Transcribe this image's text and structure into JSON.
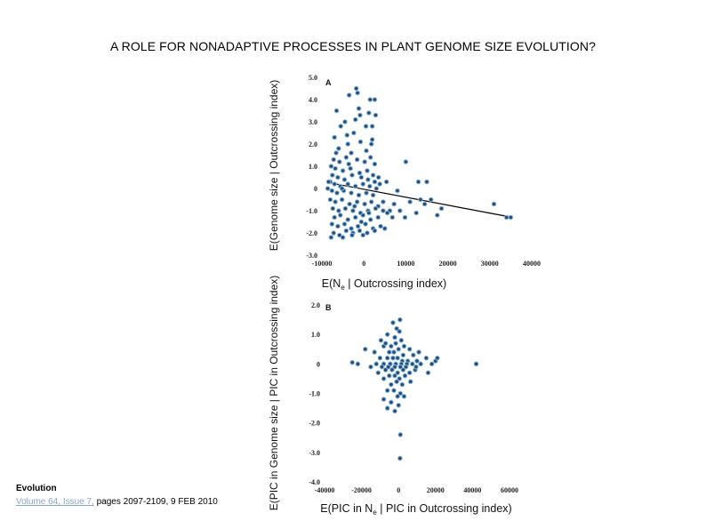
{
  "slide": {
    "title": "A ROLE FOR NONADAPTIVE PROCESSES IN PLANT GENOME SIZE EVOLUTION?",
    "journal": "Evolution",
    "issue_link": "Volume 64, Issue 7,",
    "pages_date": " pages 2097-2109, 9 FEB 2010"
  },
  "colors": {
    "point_fill": "#1f4e79",
    "point_halo": "#8fb8e0",
    "fit_line": "#000000"
  },
  "chart_data": [
    {
      "type": "scatter",
      "panel": "A",
      "ylabel": "E(Genome size | Outcrossing index)",
      "xlabel_main": "E(N",
      "xlabel_sub": "e",
      "xlabel_tail": " | Outcrossing index)",
      "xlim": [
        -10000,
        40000
      ],
      "ylim": [
        -3.0,
        5.0
      ],
      "x_ticks": [
        -10000,
        0,
        10000,
        20000,
        30000,
        40000
      ],
      "x_tick_labels": [
        "-10000",
        "0",
        "10000",
        "20000",
        "30000",
        "40000"
      ],
      "y_ticks": [
        -3,
        -2,
        -1,
        0,
        1,
        2,
        3,
        4,
        5
      ],
      "y_tick_labels": [
        "-3.0",
        "-2.0",
        "-1.0",
        "0",
        "1.0",
        "2.0",
        "3.0",
        "4.0",
        "5.0"
      ],
      "fit_line": {
        "x": [
          -8000,
          34000
        ],
        "y": [
          0.25,
          -1.25
        ]
      },
      "points": [
        [
          -1800,
          4.5
        ],
        [
          -1500,
          4.3
        ],
        [
          -3500,
          4.2
        ],
        [
          1500,
          4.0
        ],
        [
          2600,
          4.0
        ],
        [
          -6500,
          3.5
        ],
        [
          -1200,
          3.6
        ],
        [
          1200,
          3.4
        ],
        [
          -4500,
          3.0
        ],
        [
          -2000,
          3.1
        ],
        [
          -900,
          3.3
        ],
        [
          2800,
          3.3
        ],
        [
          -5500,
          2.8
        ],
        [
          -2400,
          2.5
        ],
        [
          500,
          2.8
        ],
        [
          2000,
          2.8
        ],
        [
          -7000,
          2.3
        ],
        [
          -3800,
          2.0
        ],
        [
          -800,
          2.1
        ],
        [
          1800,
          2.0
        ],
        [
          -6000,
          1.8
        ],
        [
          -3000,
          1.6
        ],
        [
          600,
          1.7
        ],
        [
          -4200,
          1.4
        ],
        [
          -7200,
          1.3
        ],
        [
          -5800,
          1.2
        ],
        [
          -3600,
          1.1
        ],
        [
          -1600,
          1.3
        ],
        [
          200,
          1.2
        ],
        [
          1600,
          1.4
        ],
        [
          2600,
          1.1
        ],
        [
          -6800,
          0.9
        ],
        [
          -5000,
          0.8
        ],
        [
          -3200,
          0.9
        ],
        [
          -1000,
          0.7
        ],
        [
          800,
          0.8
        ],
        [
          2200,
          0.6
        ],
        [
          3500,
          0.5
        ],
        [
          -7500,
          0.6
        ],
        [
          -6200,
          0.5
        ],
        [
          -4600,
          0.4
        ],
        [
          -2800,
          0.6
        ],
        [
          -600,
          0.5
        ],
        [
          1000,
          0.4
        ],
        [
          2600,
          0.3
        ],
        [
          -8000,
          0.3
        ],
        [
          -7000,
          0.2
        ],
        [
          -5600,
          0.1
        ],
        [
          -3800,
          0.2
        ],
        [
          -2000,
          0.1
        ],
        [
          -200,
          0.2
        ],
        [
          1400,
          0.1
        ],
        [
          3000,
          0.0
        ],
        [
          -7600,
          -0.1
        ],
        [
          -6400,
          -0.2
        ],
        [
          -4800,
          -0.1
        ],
        [
          -3000,
          -0.2
        ],
        [
          -1200,
          -0.3
        ],
        [
          600,
          -0.2
        ],
        [
          2200,
          -0.3
        ],
        [
          -8000,
          -0.5
        ],
        [
          -6800,
          -0.6
        ],
        [
          -5200,
          -0.5
        ],
        [
          -3400,
          -0.7
        ],
        [
          -1600,
          -0.6
        ],
        [
          200,
          -0.7
        ],
        [
          1800,
          -0.6
        ],
        [
          3400,
          -0.8
        ],
        [
          -7400,
          -0.9
        ],
        [
          -6000,
          -1.0
        ],
        [
          -4400,
          -0.9
        ],
        [
          -2600,
          -1.0
        ],
        [
          -800,
          -1.1
        ],
        [
          1000,
          -1.0
        ],
        [
          2800,
          -0.9
        ],
        [
          4600,
          -1.0
        ],
        [
          6200,
          -1.0
        ],
        [
          -7000,
          -1.3
        ],
        [
          -5600,
          -1.2
        ],
        [
          -3800,
          -1.4
        ],
        [
          -2000,
          -1.3
        ],
        [
          -200,
          -1.2
        ],
        [
          1600,
          -1.4
        ],
        [
          3400,
          -1.3
        ],
        [
          -7600,
          -1.6
        ],
        [
          -6200,
          -1.7
        ],
        [
          -4600,
          -1.6
        ],
        [
          -3000,
          -1.8
        ],
        [
          -1400,
          -1.7
        ],
        [
          400,
          -1.6
        ],
        [
          2200,
          -1.8
        ],
        [
          4000,
          -1.7
        ],
        [
          -7200,
          -2.0
        ],
        [
          -5800,
          -2.1
        ],
        [
          -4200,
          -1.9
        ],
        [
          -2600,
          -2.0
        ],
        [
          -1000,
          -1.9
        ],
        [
          800,
          -2.0
        ],
        [
          2600,
          -1.9
        ],
        [
          5000,
          -1.8
        ],
        [
          -7800,
          -2.2
        ],
        [
          -5000,
          -2.2
        ],
        [
          -8400,
          0.3
        ],
        [
          -8600,
          0.0
        ],
        [
          -7800,
          1.0
        ],
        [
          -6600,
          1.6
        ],
        [
          -4000,
          2.4
        ],
        [
          -5200,
          0.0
        ],
        [
          -2200,
          -0.8
        ],
        [
          -600,
          -1.5
        ],
        [
          1200,
          -1.1
        ],
        [
          3800,
          0.2
        ],
        [
          4600,
          -0.6
        ],
        [
          5600,
          -1.1
        ],
        [
          7200,
          -0.7
        ],
        [
          8600,
          -1.0
        ],
        [
          9800,
          -1.3
        ],
        [
          11000,
          -0.6
        ],
        [
          12500,
          -1.1
        ],
        [
          13500,
          -0.5
        ],
        [
          14500,
          -0.7
        ],
        [
          16000,
          -0.5
        ],
        [
          17500,
          -1.2
        ],
        [
          18500,
          -0.9
        ],
        [
          13000,
          0.3
        ],
        [
          15000,
          0.3
        ],
        [
          10000,
          1.2
        ],
        [
          2000,
          2.2
        ],
        [
          -200,
          -2.1
        ],
        [
          -2800,
          -2.1
        ],
        [
          31000,
          -0.7
        ],
        [
          34000,
          -1.3
        ],
        [
          35000,
          -1.3
        ],
        [
          6800,
          -1.3
        ],
        [
          8000,
          -0.1
        ],
        [
          5400,
          0.3
        ]
      ]
    },
    {
      "type": "scatter",
      "panel": "B",
      "ylabel": "E(PIC in Genome size | PIC in Outcrossing index)",
      "xlabel_main": "E(PIC in N",
      "xlabel_sub": "e",
      "xlabel_tail": " | PIC in Outcrossing index)",
      "xlim": [
        -40000,
        60000
      ],
      "ylim": [
        -4.0,
        2.0
      ],
      "x_ticks": [
        -40000,
        -20000,
        0,
        20000,
        40000,
        60000
      ],
      "x_tick_labels": [
        "-40000",
        "-20000",
        "0",
        "20000",
        "40000",
        "60000"
      ],
      "y_ticks": [
        -4,
        -3,
        -2,
        -1,
        0,
        1,
        2
      ],
      "y_tick_labels": [
        "-4.0",
        "-3.0",
        "-2.0",
        "-1.0",
        "0",
        "1.0",
        "2.0"
      ],
      "points": [
        [
          800,
          1.5
        ],
        [
          -3000,
          1.4
        ],
        [
          -1000,
          1.2
        ],
        [
          500,
          1.1
        ],
        [
          -6000,
          1.0
        ],
        [
          -2000,
          0.9
        ],
        [
          1500,
          0.8
        ],
        [
          -8000,
          0.6
        ],
        [
          -4000,
          0.6
        ],
        [
          -1500,
          0.7
        ],
        [
          3000,
          0.6
        ],
        [
          6000,
          0.5
        ],
        [
          -5000,
          0.4
        ],
        [
          -2500,
          0.4
        ],
        [
          0,
          0.5
        ],
        [
          2500,
          0.3
        ],
        [
          8000,
          0.3
        ],
        [
          -10000,
          0.2
        ],
        [
          -6000,
          0.2
        ],
        [
          -3000,
          0.2
        ],
        [
          -500,
          0.2
        ],
        [
          2000,
          0.1
        ],
        [
          5000,
          0.1
        ],
        [
          10000,
          0.1
        ],
        [
          -12000,
          0.0
        ],
        [
          -8000,
          0.0
        ],
        [
          -4500,
          0.0
        ],
        [
          -1500,
          0.0
        ],
        [
          1500,
          0.0
        ],
        [
          4500,
          0.0
        ],
        [
          7500,
          0.0
        ],
        [
          12000,
          0.0
        ],
        [
          -9000,
          -0.1
        ],
        [
          -5500,
          -0.1
        ],
        [
          -2000,
          -0.1
        ],
        [
          1000,
          -0.1
        ],
        [
          4000,
          -0.1
        ],
        [
          9000,
          -0.2
        ],
        [
          -7000,
          -0.2
        ],
        [
          -3500,
          -0.2
        ],
        [
          -500,
          -0.3
        ],
        [
          2500,
          -0.2
        ],
        [
          6000,
          -0.3
        ],
        [
          -11000,
          -0.3
        ],
        [
          -5000,
          -0.4
        ],
        [
          -2000,
          -0.4
        ],
        [
          500,
          -0.5
        ],
        [
          3500,
          -0.4
        ],
        [
          -8000,
          -0.5
        ],
        [
          -1000,
          -0.6
        ],
        [
          2000,
          -0.7
        ],
        [
          -4000,
          -0.7
        ],
        [
          -6000,
          -0.9
        ],
        [
          -2500,
          -0.9
        ],
        [
          1000,
          -1.0
        ],
        [
          -500,
          -1.1
        ],
        [
          3000,
          -1.1
        ],
        [
          -8000,
          -1.2
        ],
        [
          -4000,
          -1.3
        ],
        [
          0,
          -1.4
        ],
        [
          -2000,
          -1.6
        ],
        [
          -6000,
          -1.5
        ],
        [
          1000,
          -2.4
        ],
        [
          800,
          -3.2
        ],
        [
          -25000,
          0.05
        ],
        [
          -22000,
          0.0
        ],
        [
          -15000,
          -0.1
        ],
        [
          -18000,
          0.5
        ],
        [
          15000,
          0.2
        ],
        [
          18000,
          0.0
        ],
        [
          20000,
          0.1
        ],
        [
          21000,
          0.2
        ],
        [
          16000,
          -0.3
        ],
        [
          42000,
          0.0
        ],
        [
          -13000,
          0.4
        ],
        [
          11000,
          0.4
        ],
        [
          -9500,
          0.8
        ],
        [
          6500,
          -0.6
        ],
        [
          -7000,
          0.7
        ],
        [
          9500,
          -0.1
        ]
      ]
    }
  ]
}
